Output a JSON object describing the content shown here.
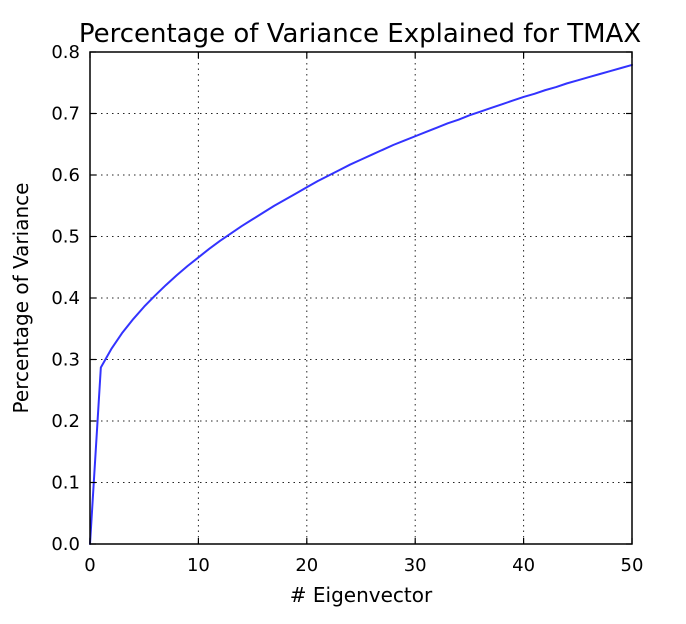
{
  "chart_data": {
    "type": "line",
    "title": "Percentage of Variance Explained for TMAX",
    "xlabel": "# Eigenvector",
    "ylabel": "Percentage of Variance",
    "xlim": [
      0,
      50
    ],
    "ylim": [
      0.0,
      0.8
    ],
    "xticks": [
      "0",
      "10",
      "20",
      "30",
      "40",
      "50"
    ],
    "yticks": [
      "0.0",
      "0.1",
      "0.2",
      "0.3",
      "0.4",
      "0.5",
      "0.6",
      "0.7",
      "0.8"
    ],
    "grid": true,
    "series": [
      {
        "color": "#3333ff",
        "x": [
          0,
          1,
          2,
          3,
          4,
          5,
          6,
          7,
          8,
          9,
          10,
          11,
          12,
          13,
          14,
          15,
          16,
          17,
          18,
          19,
          20,
          21,
          22,
          23,
          24,
          25,
          26,
          27,
          28,
          29,
          30,
          31,
          32,
          33,
          34,
          35,
          36,
          37,
          38,
          39,
          40,
          41,
          42,
          43,
          44,
          45,
          46,
          47,
          48,
          49,
          50
        ],
        "y": [
          0.0,
          0.287,
          0.318,
          0.344,
          0.366,
          0.386,
          0.404,
          0.421,
          0.437,
          0.452,
          0.466,
          0.48,
          0.493,
          0.505,
          0.517,
          0.528,
          0.539,
          0.55,
          0.56,
          0.57,
          0.58,
          0.59,
          0.599,
          0.608,
          0.617,
          0.625,
          0.633,
          0.641,
          0.649,
          0.656,
          0.663,
          0.67,
          0.677,
          0.684,
          0.69,
          0.697,
          0.703,
          0.709,
          0.715,
          0.721,
          0.727,
          0.732,
          0.738,
          0.743,
          0.749,
          0.754,
          0.759,
          0.764,
          0.769,
          0.774,
          0.779
        ]
      }
    ]
  }
}
